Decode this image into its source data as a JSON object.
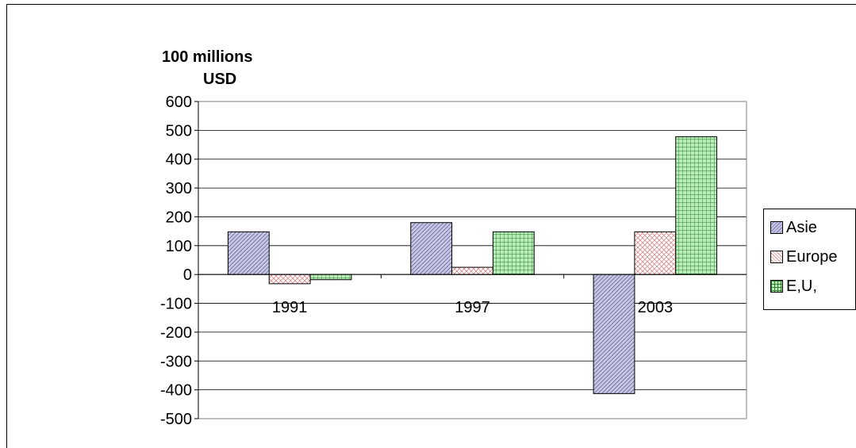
{
  "chart_data": {
    "type": "bar",
    "ylabel": "100 millions USD",
    "ylabel_lines": [
      "100 millions",
      "USD"
    ],
    "categories": [
      "1991",
      "1997",
      "2003"
    ],
    "series": [
      {
        "name": "Asie",
        "values": [
          148,
          180,
          -413
        ],
        "color": "#c8c8e6",
        "pattern": "diagonal"
      },
      {
        "name": "Europe",
        "values": [
          -32,
          25,
          148
        ],
        "color": "#f2caca",
        "pattern": "crosshatch"
      },
      {
        "name": "E,U,",
        "values": [
          -18,
          148,
          478
        ],
        "color": "#9ee59e",
        "pattern": "grid"
      }
    ],
    "ylim": [
      -500,
      600
    ],
    "yticks": [
      600,
      500,
      400,
      300,
      200,
      100,
      0,
      -100,
      -200,
      -300,
      -400,
      -500
    ],
    "grid": true,
    "legend_position": "right"
  }
}
